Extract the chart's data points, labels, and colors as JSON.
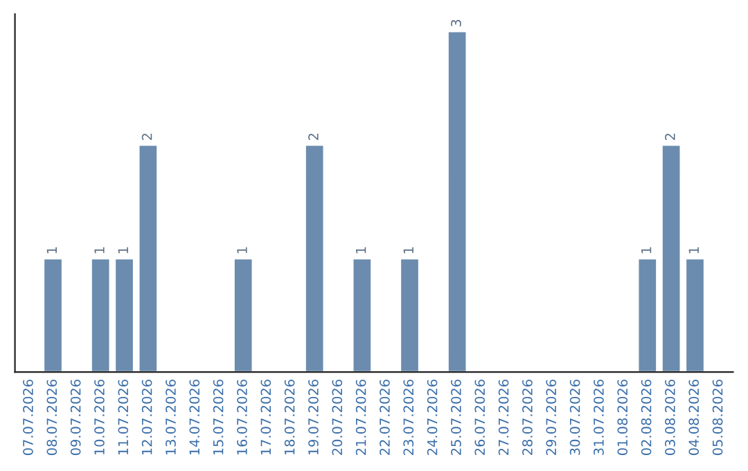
{
  "chart_data": {
    "type": "bar",
    "categories": [
      "07.07.2026",
      "08.07.2026",
      "09.07.2026",
      "10.07.2026",
      "11.07.2026",
      "12.07.2026",
      "13.07.2026",
      "14.07.2026",
      "15.07.2026",
      "16.07.2026",
      "17.07.2026",
      "18.07.2026",
      "19.07.2026",
      "20.07.2026",
      "21.07.2026",
      "22.07.2026",
      "23.07.2026",
      "24.07.2026",
      "25.07.2026",
      "26.07.2026",
      "27.07.2026",
      "28.07.2026",
      "29.07.2026",
      "30.07.2026",
      "31.07.2026",
      "01.08.2026",
      "02.08.2026",
      "03.08.2026",
      "04.08.2026",
      "05.08.2026"
    ],
    "values": [
      null,
      1,
      null,
      1,
      1,
      2,
      null,
      null,
      null,
      1,
      null,
      null,
      2,
      null,
      1,
      null,
      1,
      null,
      3,
      null,
      null,
      null,
      null,
      null,
      null,
      null,
      1,
      2,
      1,
      null
    ],
    "value_labels": [
      null,
      "1",
      null,
      "1",
      "1",
      "2",
      null,
      null,
      null,
      "1",
      null,
      null,
      "2",
      null,
      "1",
      null,
      "1",
      null,
      "3",
      null,
      null,
      null,
      null,
      null,
      null,
      null,
      "1",
      "2",
      "1",
      null
    ],
    "color": "#6b8cae",
    "tick_labels": "x",
    "grid": false,
    "legend": false
  }
}
